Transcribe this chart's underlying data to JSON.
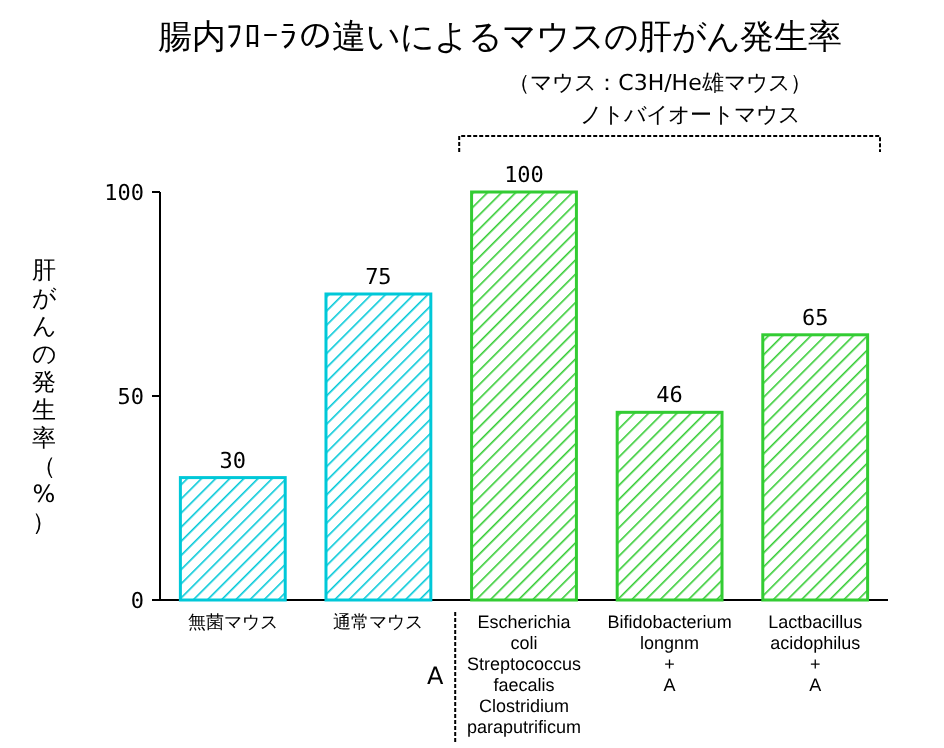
{
  "chart_data": {
    "type": "bar",
    "title": "腸内ﾌﾛｰﾗの違いによるマウスの肝がん発生率",
    "subtitle": "（マウス：C3H/He雄マウス）",
    "ylabel": "肝がんの発生率（%）",
    "categories": [
      "無菌マウス",
      "通常マウス",
      "Escherichia\ncoli\nStreptococcus\nfaecalis\nClostridium\nparaputrificum",
      "Bifidobacterium\nlongnm\n+\nA",
      "Lactbacillus\nacidophilus\n+\nA"
    ],
    "values": [
      30,
      75,
      100,
      46,
      65
    ],
    "colors": [
      "#00c8d8",
      "#00c8d8",
      "#33cc33",
      "#33cc33",
      "#33cc33"
    ],
    "data_labels": true,
    "ylim": [
      0,
      100
    ],
    "yticks": [
      0,
      50,
      100
    ],
    "grid": false,
    "annotations": [
      "ノトバイオートマウス",
      "A"
    ]
  }
}
